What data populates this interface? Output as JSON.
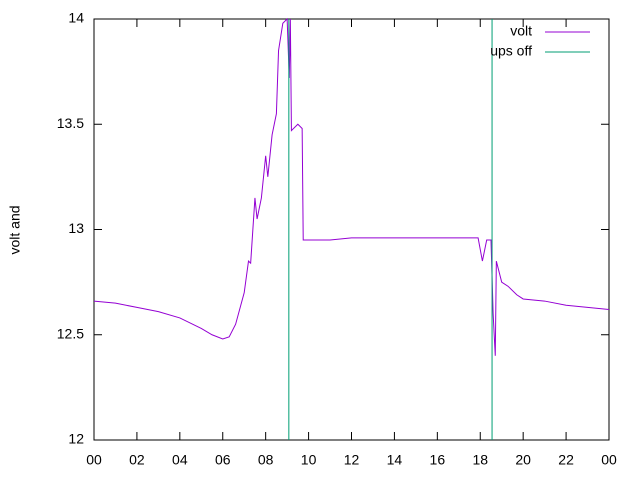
{
  "chart_data": {
    "type": "line",
    "ylabel": "volt and",
    "xlim": [
      0,
      24
    ],
    "xticks": [
      {
        "value": 0,
        "label": "00"
      },
      {
        "value": 2,
        "label": "02"
      },
      {
        "value": 4,
        "label": "04"
      },
      {
        "value": 6,
        "label": "06"
      },
      {
        "value": 8,
        "label": "08"
      },
      10,
      12,
      14,
      16,
      18,
      20,
      22,
      {
        "value": 24,
        "label": "00"
      }
    ],
    "ylim": [
      12,
      14
    ],
    "yticks": [
      12,
      12.5,
      13,
      13.5,
      14
    ],
    "legend": "top-right",
    "series": [
      {
        "name": "volt",
        "color": "#9400d3",
        "style": "lines",
        "x": [
          0,
          1,
          2,
          3,
          4,
          5,
          5.5,
          6.0,
          6.3,
          6.6,
          7.0,
          7.2,
          7.3,
          7.5,
          7.6,
          7.8,
          8.0,
          8.1,
          8.3,
          8.5,
          8.6,
          8.8,
          9.0,
          9.1,
          9.15,
          9.2,
          9.5,
          9.7,
          9.75,
          10,
          11,
          12,
          13,
          14,
          15,
          16,
          17,
          17.9,
          18.1,
          18.3,
          18.5,
          18.6,
          18.7,
          18.75,
          19.0,
          19.3,
          19.7,
          20,
          21,
          22,
          23,
          24
        ],
        "values": [
          12.66,
          12.65,
          12.63,
          12.61,
          12.58,
          12.53,
          12.5,
          12.48,
          12.49,
          12.55,
          12.7,
          12.85,
          12.84,
          13.15,
          13.05,
          13.15,
          13.35,
          13.25,
          13.45,
          13.55,
          13.85,
          13.98,
          14.0,
          13.72,
          14.0,
          13.47,
          13.5,
          13.48,
          12.95,
          12.95,
          12.95,
          12.96,
          12.96,
          12.96,
          12.96,
          12.96,
          12.96,
          12.96,
          12.85,
          12.95,
          12.95,
          12.6,
          12.4,
          12.85,
          12.75,
          12.73,
          12.69,
          12.67,
          12.66,
          12.64,
          12.63,
          12.62
        ]
      },
      {
        "name": "ups off",
        "color": "#009e73",
        "style": "impulses",
        "x": [
          9.08,
          18.55
        ],
        "values": [
          14,
          14
        ]
      }
    ]
  }
}
